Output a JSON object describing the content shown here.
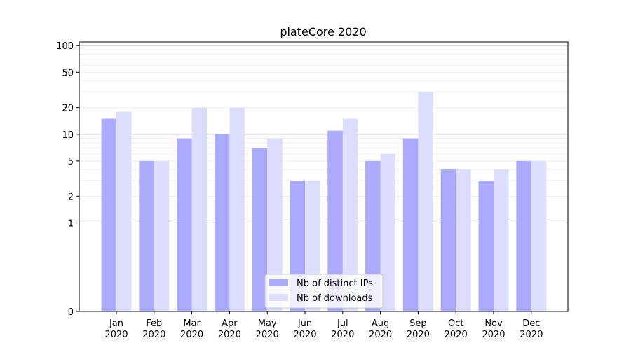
{
  "chart_data": {
    "type": "bar",
    "title": "plateCore 2020",
    "xlabel": "",
    "ylabel": "",
    "y_scale": "symlog",
    "ylim": [
      0,
      110
    ],
    "y_ticks": [
      0,
      1,
      2,
      5,
      10,
      20,
      50,
      100
    ],
    "grid": true,
    "legend_position": "lower-center",
    "categories": [
      [
        "Jan",
        "2020"
      ],
      [
        "Feb",
        "2020"
      ],
      [
        "Mar",
        "2020"
      ],
      [
        "Apr",
        "2020"
      ],
      [
        "May",
        "2020"
      ],
      [
        "Jun",
        "2020"
      ],
      [
        "Jul",
        "2020"
      ],
      [
        "Aug",
        "2020"
      ],
      [
        "Sep",
        "2020"
      ],
      [
        "Oct",
        "2020"
      ],
      [
        "Nov",
        "2020"
      ],
      [
        "Dec",
        "2020"
      ]
    ],
    "series": [
      {
        "name": "Nb of distinct IPs",
        "color": "#aaaaff",
        "values": [
          15,
          5,
          9,
          10,
          7,
          3,
          11,
          5,
          9,
          4,
          3,
          5
        ]
      },
      {
        "name": "Nb of downloads",
        "color": "#ddddff",
        "values": [
          18,
          5,
          20,
          20,
          9,
          3,
          15,
          6,
          30,
          4,
          4,
          5
        ]
      }
    ]
  }
}
